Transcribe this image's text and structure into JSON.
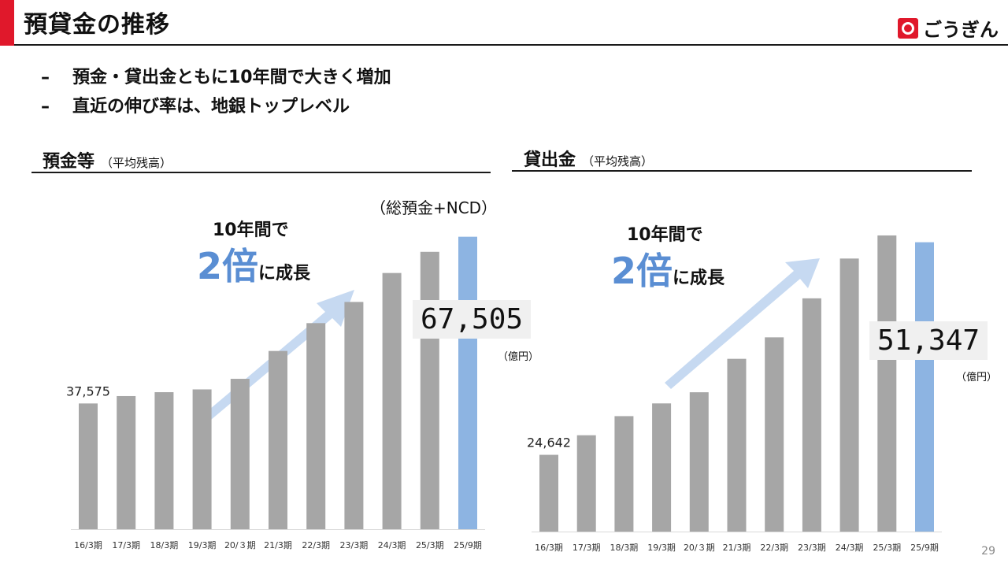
{
  "header": {
    "title": "預貸金の推移",
    "logo_text": "ごうぎん"
  },
  "bullets": [
    {
      "dash": "–",
      "text": "預金・貸出金ともに10年間で大きく増加"
    },
    {
      "dash": "–",
      "text": "直近の伸び率は、地銀トップレベル"
    }
  ],
  "deposits": {
    "title": "預金等",
    "subtitle": "（平均残高）",
    "note": "（総預金+NCD）",
    "growth_line1": "10年間で",
    "growth_big": "2倍",
    "growth_rest": "に成長",
    "callout": "67,505",
    "unit": "（億円）",
    "first_label": "37,575"
  },
  "loans": {
    "title": "貸出金",
    "subtitle": "（平均残高）",
    "growth_line1": "10年間で",
    "growth_big": "2倍",
    "growth_rest": "に成長",
    "callout": "51,347",
    "unit": "（億円）",
    "first_label": "24,642"
  },
  "colors": {
    "bar": "#a6a6a6",
    "highlight": "#8db4e2",
    "arrow": "#c6d9f1",
    "accent": "#e0182b"
  },
  "chart_data": [
    {
      "type": "bar",
      "title": "預金等",
      "categories": [
        "16/3期",
        "17/3期",
        "18/3期",
        "19/3期",
        "20/３期",
        "21/3期",
        "22/3期",
        "23/3期",
        "24/3期",
        "25/3期",
        "25/9期"
      ],
      "values": [
        37575,
        38900,
        39600,
        40100,
        42000,
        47000,
        52000,
        55800,
        61000,
        64800,
        67505
      ],
      "ylim": [
        15000,
        70000
      ],
      "highlight_index": 10,
      "labeled": [
        0,
        10
      ]
    },
    {
      "type": "bar",
      "title": "貸出金",
      "categories": [
        "16/3期",
        "17/3期",
        "18/3期",
        "19/3期",
        "20/３期",
        "21/3期",
        "22/3期",
        "23/3期",
        "24/3期",
        "25/3期",
        "25/9期"
      ],
      "values": [
        24642,
        27100,
        29500,
        31100,
        32500,
        36700,
        39400,
        44300,
        49300,
        52200,
        51347
      ],
      "ylim": [
        15000,
        52000
      ],
      "highlight_index": 10,
      "labeled": [
        0,
        10
      ]
    }
  ],
  "page_number": "29"
}
